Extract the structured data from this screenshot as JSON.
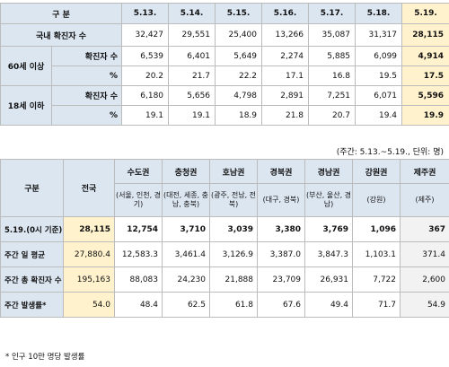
{
  "top_table": {
    "header_label": "구 분",
    "dates": [
      "5.13.",
      "5.14.",
      "5.15.",
      "5.16.",
      "5.17.",
      "5.18.",
      "5.19."
    ],
    "domestic_row": {
      "label": "국내 확진자 수",
      "values": [
        "32,427",
        "29,551",
        "25,400",
        "13,266",
        "35,087",
        "31,317",
        "28,115"
      ]
    },
    "age60": {
      "group_label": "60세 이상",
      "count_label": "확진자 수",
      "count_values": [
        "6,539",
        "6,401",
        "5,649",
        "2,274",
        "5,885",
        "6,099",
        "4,914"
      ],
      "pct_label": "%",
      "pct_values": [
        "20.2",
        "21.7",
        "22.2",
        "17.1",
        "16.8",
        "19.5",
        "17.5"
      ]
    },
    "age18": {
      "group_label": "18세 이하",
      "count_label": "확진자 수",
      "count_values": [
        "6,180",
        "5,656",
        "4,798",
        "2,891",
        "7,251",
        "6,071",
        "5,596"
      ],
      "pct_label": "%",
      "pct_values": [
        "19.1",
        "19.1",
        "18.9",
        "21.8",
        "20.7",
        "19.4",
        "19.9"
      ]
    }
  },
  "period_note": "(주간: 5.13.~5.19., 단위: 명)",
  "bottom_table": {
    "col_label": "구분",
    "national_label": "전국",
    "regions": [
      {
        "name": "수도권",
        "sub": "(서울, 인천, 경기)"
      },
      {
        "name": "충청권",
        "sub": "(대전, 세종, 충남, 충북)"
      },
      {
        "name": "호남권",
        "sub": "(광주, 전남, 전북)"
      },
      {
        "name": "경북권",
        "sub": "(대구, 경북)"
      },
      {
        "name": "경남권",
        "sub": "(부산, 울산, 경남)"
      },
      {
        "name": "강원권",
        "sub": "(강원)"
      },
      {
        "name": "제주권",
        "sub": "(제주)"
      }
    ],
    "rows": [
      {
        "label": "5.19.(0시 기준)",
        "national": "28,115",
        "values": [
          "12,754",
          "3,710",
          "3,039",
          "3,380",
          "3,769",
          "1,096",
          "367"
        ]
      },
      {
        "label": "주간 일 평균",
        "national": "27,880.4",
        "values": [
          "12,583.3",
          "3,461.4",
          "3,126.9",
          "3,387.0",
          "3,847.3",
          "1,103.1",
          "371.4"
        ]
      },
      {
        "label": "주간 총 확진자 수",
        "national": "195,163",
        "values": [
          "88,083",
          "24,230",
          "21,888",
          "23,709",
          "26,931",
          "7,722",
          "2,600"
        ]
      },
      {
        "label": "주간 발생률*",
        "national": "54.0",
        "values": [
          "48.4",
          "62.5",
          "61.8",
          "67.6",
          "49.4",
          "71.7",
          "54.9"
        ]
      }
    ]
  },
  "footnote": "* 인구 10만 명당 발생률"
}
